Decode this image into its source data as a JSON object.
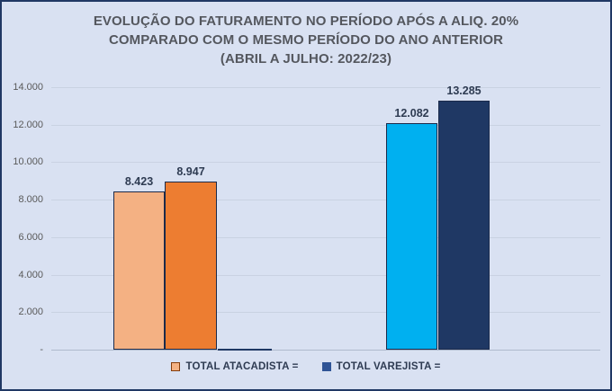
{
  "chart": {
    "title_line1": "EVOLUÇÃO DO FATURAMENTO NO PERÍODO APÓS A ALIQ. 20%",
    "title_line2": "COMPARADO COM O MESMO PERÍODO DO ANO ANTERIOR",
    "title_line3": "(ABRIL A JULHO: 2022/23)"
  },
  "chart_data": {
    "type": "bar",
    "title": "EVOLUÇÃO DO FATURAMENTO NO PERÍODO APÓS A ALIQ. 20% COMPARADO COM O MESMO PERÍODO DO ANO ANTERIOR (ABRIL A JULHO: 2022/23)",
    "categories": [
      "TOTAL ATACADISTA",
      "TOTAL VAREJISTA"
    ],
    "bars": [
      {
        "group": "TOTAL ATACADISTA",
        "value": 8423,
        "label": "8.423",
        "color": "#F4B183"
      },
      {
        "group": "TOTAL ATACADISTA",
        "value": 8947,
        "label": "8.947",
        "color": "#ED7D31"
      },
      {
        "group": "TOTAL VAREJISTA",
        "value": 12082,
        "label": "12.082",
        "color": "#00B0F0"
      },
      {
        "group": "TOTAL VAREJISTA",
        "value": 13285,
        "label": "13.285",
        "color": "#1F3864"
      }
    ],
    "zero_value_marker": {
      "group": "TOTAL ATACADISTA",
      "value": 0,
      "color": "#1F3864"
    },
    "y_axis": {
      "ticks": [
        {
          "label": "14.000",
          "value": 14000
        },
        {
          "label": "12.000",
          "value": 12000
        },
        {
          "label": "10.000",
          "value": 10000
        },
        {
          "label": "8.000",
          "value": 8000
        },
        {
          "label": "6.000",
          "value": 6000
        },
        {
          "label": "4.000",
          "value": 4000
        },
        {
          "label": "2.000",
          "value": 2000
        },
        {
          "label": "-",
          "value": 0
        }
      ],
      "ylim": [
        0,
        14000
      ],
      "grid": true
    },
    "legend": {
      "position": "bottom",
      "items": [
        {
          "label": "TOTAL ATACADISTA =",
          "swatch_color": "#F4B183",
          "swatch_border": "#843C0C"
        },
        {
          "label": "TOTAL VAREJISTA =",
          "swatch_color": "#2F5496",
          "swatch_border": "#2F5496"
        }
      ]
    },
    "colors": {
      "background": "#D9E1F2",
      "frame_border": "#203864",
      "gridline": "#C9D2E2",
      "title_text": "#54575E",
      "tick_text": "#595959",
      "data_label_text": "#2E3B52",
      "legend_text": "#2E3B52"
    }
  }
}
